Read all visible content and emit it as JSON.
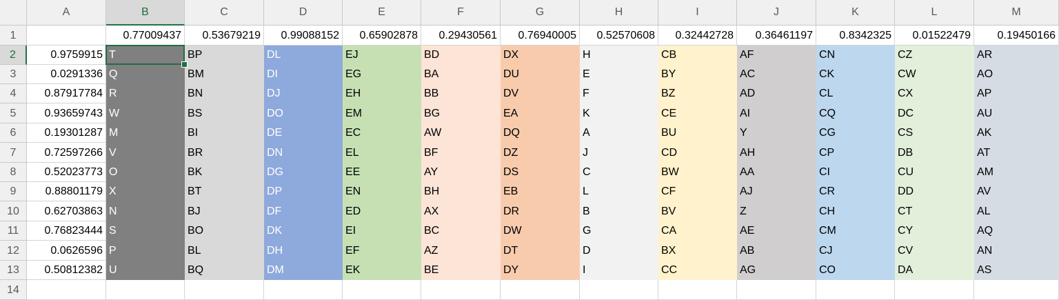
{
  "columns": [
    "A",
    "B",
    "C",
    "D",
    "E",
    "F",
    "G",
    "H",
    "I",
    "J",
    "K",
    "L",
    "M"
  ],
  "rows": [
    "1",
    "2",
    "3",
    "4",
    "5",
    "6",
    "7",
    "8",
    "9",
    "10",
    "11",
    "12",
    "13",
    "14"
  ],
  "selected_cell": "B2",
  "row1_values": [
    "",
    "0.77009437",
    "0.53679219",
    "0.99088152",
    "0.65902878",
    "0.29430561",
    "0.76940005",
    "0.52570608",
    "0.32442728",
    "0.36461197",
    "0.8342325",
    "0.01522479",
    "0.19450166"
  ],
  "column_a_values": [
    "0.9759915",
    "0.0291336",
    "0.87917784",
    "0.93659743",
    "0.19301287",
    "0.72597266",
    "0.52023773",
    "0.88801179",
    "0.62703863",
    "0.76823444",
    "0.0626596",
    "0.50812382"
  ],
  "data_rows": [
    [
      "T",
      "BP",
      "DL",
      "EJ",
      "BD",
      "DX",
      "H",
      "CB",
      "AF",
      "CN",
      "CZ",
      "AR"
    ],
    [
      "Q",
      "BM",
      "DI",
      "EG",
      "BA",
      "DU",
      "E",
      "BY",
      "AC",
      "CK",
      "CW",
      "AO"
    ],
    [
      "R",
      "BN",
      "DJ",
      "EH",
      "BB",
      "DV",
      "F",
      "BZ",
      "AD",
      "CL",
      "CX",
      "AP"
    ],
    [
      "W",
      "BS",
      "DO",
      "EM",
      "BG",
      "EA",
      "K",
      "CE",
      "AI",
      "CQ",
      "DC",
      "AU"
    ],
    [
      "M",
      "BI",
      "DE",
      "EC",
      "AW",
      "DQ",
      "A",
      "BU",
      "Y",
      "CG",
      "CS",
      "AK"
    ],
    [
      "V",
      "BR",
      "DN",
      "EL",
      "BF",
      "DZ",
      "J",
      "CD",
      "AH",
      "CP",
      "DB",
      "AT"
    ],
    [
      "O",
      "BK",
      "DG",
      "EE",
      "AY",
      "DS",
      "C",
      "BW",
      "AA",
      "CI",
      "CU",
      "AM"
    ],
    [
      "X",
      "BT",
      "DP",
      "EN",
      "BH",
      "EB",
      "L",
      "CF",
      "AJ",
      "CR",
      "DD",
      "AV"
    ],
    [
      "N",
      "BJ",
      "DF",
      "ED",
      "AX",
      "DR",
      "B",
      "BV",
      "Z",
      "CH",
      "CT",
      "AL"
    ],
    [
      "S",
      "BO",
      "DK",
      "EI",
      "BC",
      "DW",
      "G",
      "CA",
      "AE",
      "CM",
      "CY",
      "AQ"
    ],
    [
      "P",
      "BL",
      "DH",
      "EF",
      "AZ",
      "DT",
      "D",
      "BX",
      "AB",
      "CJ",
      "CV",
      "AN"
    ],
    [
      "U",
      "BQ",
      "DM",
      "EK",
      "BE",
      "DY",
      "I",
      "CC",
      "AG",
      "CO",
      "DA",
      "AS"
    ]
  ],
  "column_fill_colors": {
    "B": "#808080",
    "C": "#d9d9d9",
    "D": "#8ea9db",
    "E": "#c6e0b4",
    "F": "#fce4d6",
    "G": "#f8cbad",
    "H": "#f2f2f2",
    "I": "#fff2cc",
    "J": "#d0cece",
    "K": "#bdd7ee",
    "L": "#e2efda",
    "M": "#d6dce4"
  },
  "column_text_colors": {
    "B": "#ffffff",
    "D": "#ffffff"
  }
}
